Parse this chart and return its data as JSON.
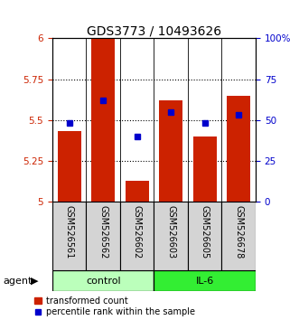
{
  "title": "GDS3773 / 10493626",
  "samples": [
    "GSM526561",
    "GSM526562",
    "GSM526602",
    "GSM526603",
    "GSM526605",
    "GSM526678"
  ],
  "transformed_count": [
    5.43,
    6.0,
    5.13,
    5.62,
    5.4,
    5.65
  ],
  "percentile_rank": [
    48,
    62,
    40,
    55,
    48,
    53
  ],
  "ylim_left": [
    5.0,
    6.0
  ],
  "ylim_right": [
    0,
    100
  ],
  "yticks_left": [
    5.0,
    5.25,
    5.5,
    5.75,
    6.0
  ],
  "yticks_right": [
    0,
    25,
    50,
    75,
    100
  ],
  "ytick_labels_left": [
    "5",
    "5.25",
    "5.5",
    "5.75",
    "6"
  ],
  "ytick_labels_right": [
    "0",
    "25",
    "50",
    "75",
    "100%"
  ],
  "bar_color": "#cc2200",
  "dot_color": "#0000cc",
  "group_labels": [
    "control",
    "IL-6"
  ],
  "group_ranges": [
    [
      0,
      3
    ],
    [
      3,
      6
    ]
  ],
  "group_color_control": "#bbffbb",
  "group_color_il6": "#33ee33",
  "agent_label": "agent",
  "legend_bar_label": "transformed count",
  "legend_dot_label": "percentile rank within the sample",
  "bar_width": 0.7,
  "title_fontsize": 10,
  "tick_fontsize": 7.5,
  "sample_fontsize": 7,
  "group_fontsize": 8,
  "legend_fontsize": 7
}
